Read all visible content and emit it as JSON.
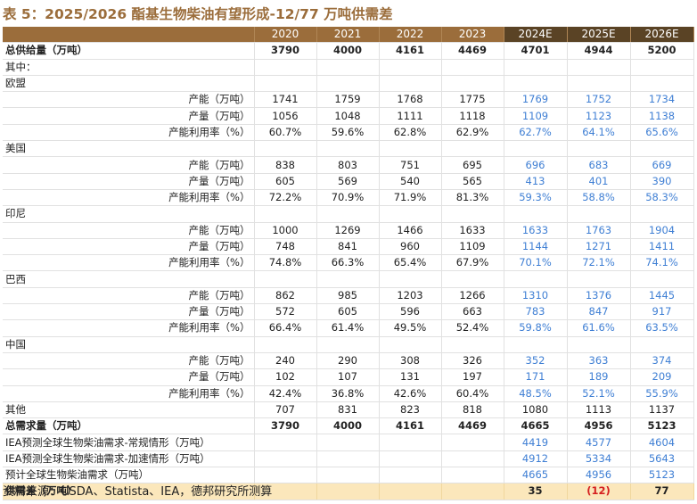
{
  "title": "表 5：2025/2026 酯基生物柴油有望形成-12/77 万吨供需差",
  "header": {
    "first": "",
    "years": [
      "2020",
      "2021",
      "2022",
      "2023",
      "2024E",
      "2025E",
      "2026E"
    ]
  },
  "rows": [
    {
      "label": "总供给量（万吨）",
      "style": "bold",
      "cells": [
        "3790",
        "4000",
        "4161",
        "4469",
        "4701",
        "4944",
        "5200"
      ]
    },
    {
      "label": "其中：",
      "style": "group",
      "cells": [
        "",
        "",
        "",
        "",
        "",
        "",
        ""
      ]
    },
    {
      "label": "欧盟",
      "style": "group",
      "cells": [
        "",
        "",
        "",
        "",
        "",
        "",
        ""
      ]
    },
    {
      "label": "产能（万吨）",
      "style": "indent",
      "cells": [
        "1741",
        "1759",
        "1768",
        "1775",
        "1769",
        "1752",
        "1734"
      ]
    },
    {
      "label": "产量（万吨）",
      "style": "indent",
      "cells": [
        "1056",
        "1048",
        "1111",
        "1118",
        "1109",
        "1123",
        "1138"
      ]
    },
    {
      "label": "产能利用率（%）",
      "style": "indent",
      "cells": [
        "60.7%",
        "59.6%",
        "62.8%",
        "62.9%",
        "62.7%",
        "64.1%",
        "65.6%"
      ]
    },
    {
      "label": "美国",
      "style": "group",
      "cells": [
        "",
        "",
        "",
        "",
        "",
        "",
        ""
      ]
    },
    {
      "label": "产能（万吨）",
      "style": "indent",
      "cells": [
        "838",
        "803",
        "751",
        "695",
        "696",
        "683",
        "669"
      ]
    },
    {
      "label": "产量（万吨）",
      "style": "indent",
      "cells": [
        "605",
        "569",
        "540",
        "565",
        "413",
        "401",
        "390"
      ]
    },
    {
      "label": "产能利用率（%）",
      "style": "indent",
      "cells": [
        "72.2%",
        "70.9%",
        "71.9%",
        "81.3%",
        "59.3%",
        "58.8%",
        "58.3%"
      ]
    },
    {
      "label": "印尼",
      "style": "group",
      "cells": [
        "",
        "",
        "",
        "",
        "",
        "",
        ""
      ]
    },
    {
      "label": "产能（万吨）",
      "style": "indent",
      "cells": [
        "1000",
        "1269",
        "1466",
        "1633",
        "1633",
        "1763",
        "1904"
      ]
    },
    {
      "label": "产量（万吨）",
      "style": "indent",
      "cells": [
        "748",
        "841",
        "960",
        "1109",
        "1144",
        "1271",
        "1411"
      ]
    },
    {
      "label": "产能利用率（%）",
      "style": "indent",
      "cells": [
        "74.8%",
        "66.3%",
        "65.4%",
        "67.9%",
        "70.1%",
        "72.1%",
        "74.1%"
      ]
    },
    {
      "label": "巴西",
      "style": "group",
      "cells": [
        "",
        "",
        "",
        "",
        "",
        "",
        ""
      ]
    },
    {
      "label": "产能（万吨）",
      "style": "indent",
      "cells": [
        "862",
        "985",
        "1203",
        "1266",
        "1310",
        "1376",
        "1445"
      ]
    },
    {
      "label": "产量（万吨）",
      "style": "indent",
      "cells": [
        "572",
        "605",
        "596",
        "663",
        "783",
        "847",
        "917"
      ]
    },
    {
      "label": "产能利用率（%）",
      "style": "indent",
      "cells": [
        "66.4%",
        "61.4%",
        "49.5%",
        "52.4%",
        "59.8%",
        "61.6%",
        "63.5%"
      ]
    },
    {
      "label": "中国",
      "style": "group",
      "cells": [
        "",
        "",
        "",
        "",
        "",
        "",
        ""
      ]
    },
    {
      "label": "产能（万吨）",
      "style": "indent",
      "cells": [
        "240",
        "290",
        "308",
        "326",
        "352",
        "363",
        "374"
      ]
    },
    {
      "label": "产量（万吨）",
      "style": "indent",
      "cells": [
        "102",
        "107",
        "131",
        "197",
        "171",
        "189",
        "209"
      ]
    },
    {
      "label": "产能利用率（%）",
      "style": "indent",
      "cells": [
        "42.4%",
        "36.8%",
        "42.6%",
        "60.4%",
        "48.5%",
        "52.1%",
        "55.9%"
      ]
    },
    {
      "label": "其他",
      "style": "plain",
      "cells": [
        "707",
        "831",
        "823",
        "818",
        "1080",
        "1113",
        "1137"
      ]
    },
    {
      "label": "总需求量（万吨）",
      "style": "bold",
      "cells": [
        "3790",
        "4000",
        "4161",
        "4469",
        "4665",
        "4956",
        "5123"
      ]
    },
    {
      "label": "IEA预测全球生物柴油需求-常规情形（万吨）",
      "style": "plain",
      "cells": [
        "",
        "",
        "",
        "",
        "4419",
        "4577",
        "4604"
      ]
    },
    {
      "label": "IEA预测全球生物柴油需求-加速情形（万吨）",
      "style": "plain",
      "cells": [
        "",
        "",
        "",
        "",
        "4912",
        "5334",
        "5643"
      ]
    },
    {
      "label": "预计全球生物柴油需求（万吨）",
      "style": "plain",
      "cells": [
        "",
        "",
        "",
        "",
        "4665",
        "4956",
        "5123"
      ]
    },
    {
      "label": "供需差（万吨）",
      "style": "gap",
      "cells": [
        "",
        "",
        "",
        "",
        "35",
        "(12)",
        "77"
      ]
    }
  ],
  "source": "资料来源：USDA、Statista、IEA，德邦研究所测算",
  "colors": {
    "accent": "#9b6d3b",
    "header_dark": "#5a4325",
    "forecast": "#3f7fd4",
    "gap_bg": "#fbe7bb",
    "negative": "#d51f1f"
  }
}
